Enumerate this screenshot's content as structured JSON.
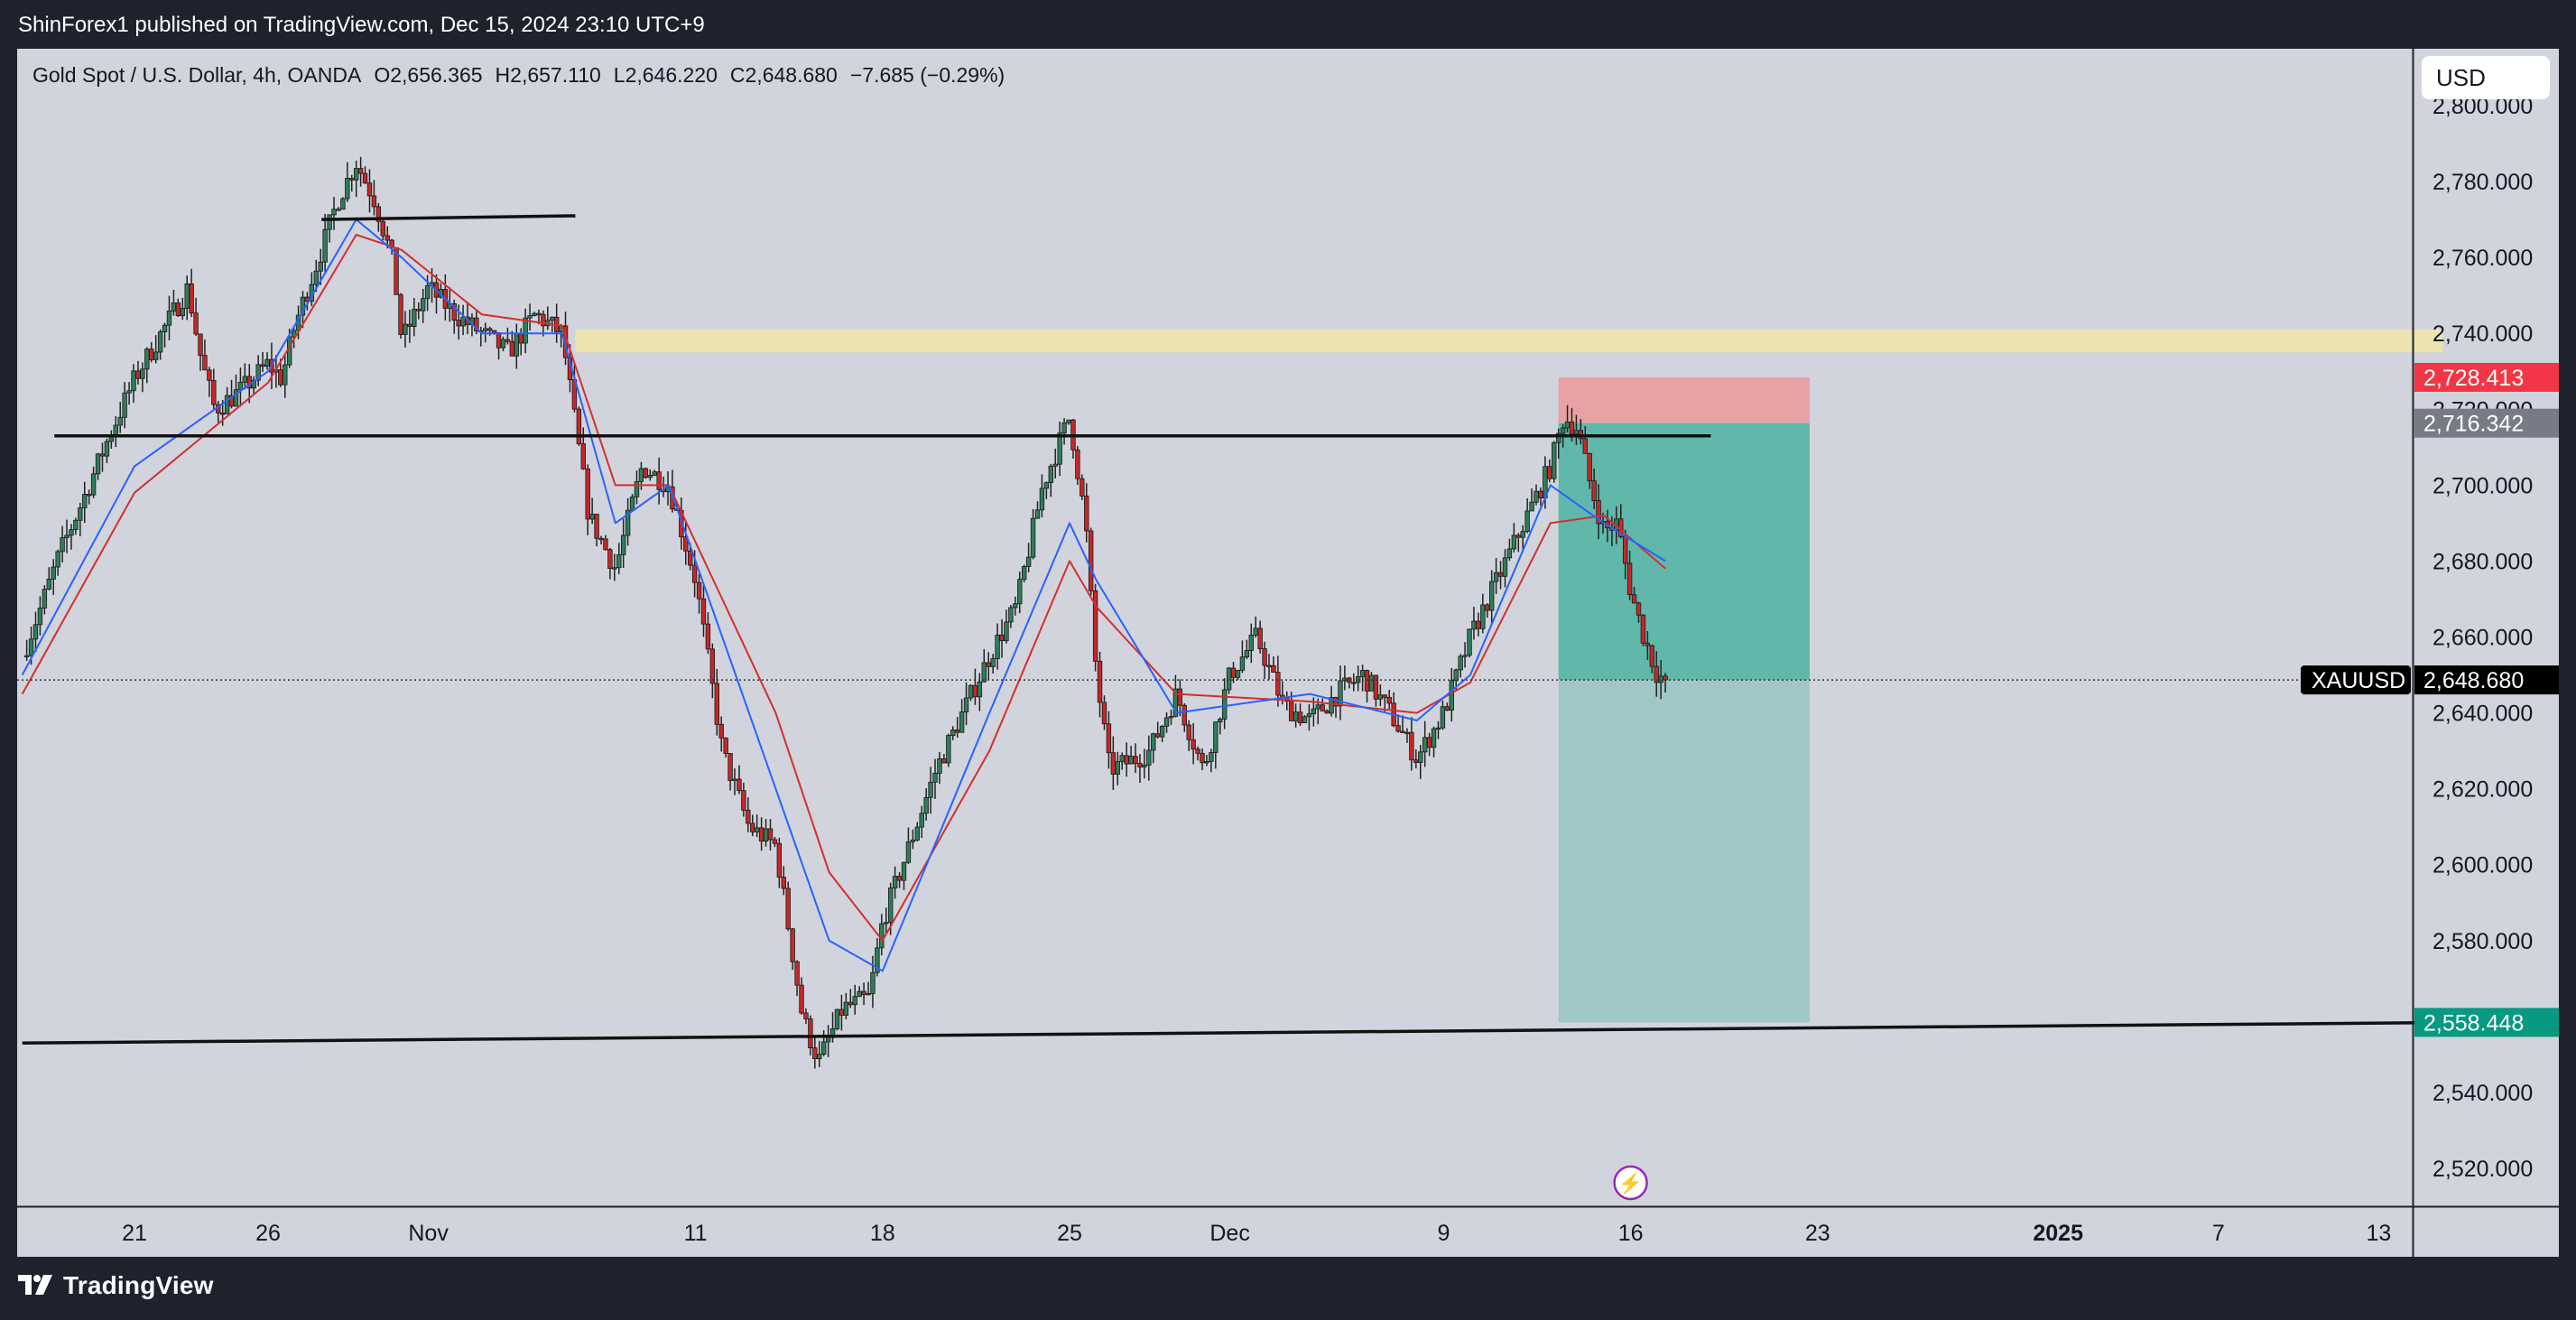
{
  "header": {
    "publisher": "ShinForex1 published on TradingView.com, Dec 15, 2024 23:10 UTC+9"
  },
  "legend": {
    "symbol": "Gold Spot / U.S. Dollar, 4h, OANDA",
    "open": "O2,656.365",
    "high": "H2,657.110",
    "low": "L2,646.220",
    "close": "C2,648.680",
    "change": "−7.685 (−0.29%)"
  },
  "currency_button": "USD",
  "footer": {
    "brand": "TradingView"
  },
  "colors": {
    "up_candle": "#2e7d5b",
    "down_candle": "#c62828",
    "ema_fast": "#2962ff",
    "ema_slow": "#d32f2f",
    "stop_zone": "#e8a2a6",
    "profit_zone": "#5fb8aa",
    "supply_zone": "#ebe3b0",
    "background": "#d1d4dc"
  },
  "chart_data": {
    "type": "candlestick",
    "symbol": "XAUUSD",
    "timeframe": "4h",
    "ylim": [
      2510,
      2815
    ],
    "y_ticks": [
      "2,800.000",
      "2,780.000",
      "2,760.000",
      "2,740.000",
      "2,720.000",
      "2,700.000",
      "2,680.000",
      "2,660.000",
      "2,640.000",
      "2,620.000",
      "2,600.000",
      "2,580.000",
      "2,560.000",
      "2,540.000",
      "2,520.000"
    ],
    "x_ticks": [
      {
        "label": "21",
        "day": 0
      },
      {
        "label": "26",
        "day": 5
      },
      {
        "label": "Nov",
        "day": 11
      },
      {
        "label": "11",
        "day": 21
      },
      {
        "label": "18",
        "day": 28
      },
      {
        "label": "25",
        "day": 35
      },
      {
        "label": "Dec",
        "day": 41
      },
      {
        "label": "9",
        "day": 49
      },
      {
        "label": "16",
        "day": 56
      },
      {
        "label": "23",
        "day": 63
      },
      {
        "label": "2025",
        "day": 72,
        "bold": true
      },
      {
        "label": "7",
        "day": 78
      },
      {
        "label": "13",
        "day": 84
      }
    ],
    "price_path": [
      [
        -4.2,
        2655
      ],
      [
        -3.5,
        2668
      ],
      [
        -2.8,
        2682
      ],
      [
        -2,
        2695
      ],
      [
        -1,
        2712
      ],
      [
        0,
        2728
      ],
      [
        1,
        2740
      ],
      [
        2,
        2752
      ],
      [
        2.5,
        2733
      ],
      [
        3,
        2720
      ],
      [
        4,
        2725
      ],
      [
        5,
        2732
      ],
      [
        5.5,
        2728
      ],
      [
        6,
        2742
      ],
      [
        7,
        2762
      ],
      [
        7.6,
        2775
      ],
      [
        8.3,
        2785
      ],
      [
        9,
        2775
      ],
      [
        9.7,
        2758
      ],
      [
        10,
        2738
      ],
      [
        11,
        2752
      ],
      [
        12,
        2745
      ],
      [
        13,
        2740
      ],
      [
        14,
        2735
      ],
      [
        15,
        2745
      ],
      [
        16,
        2740
      ],
      [
        17,
        2692
      ],
      [
        18,
        2678
      ],
      [
        19,
        2705
      ],
      [
        20,
        2700
      ],
      [
        21,
        2675
      ],
      [
        22,
        2630
      ],
      [
        23,
        2610
      ],
      [
        24,
        2605
      ],
      [
        25,
        2560
      ],
      [
        25.6,
        2548
      ],
      [
        26.5,
        2562
      ],
      [
        27.5,
        2565
      ],
      [
        28,
        2585
      ],
      [
        29,
        2605
      ],
      [
        30,
        2625
      ],
      [
        31,
        2640
      ],
      [
        32,
        2655
      ],
      [
        33,
        2668
      ],
      [
        34,
        2700
      ],
      [
        35,
        2718
      ],
      [
        35.6,
        2690
      ],
      [
        36,
        2650
      ],
      [
        36.5,
        2625
      ],
      [
        37.5,
        2628
      ],
      [
        38,
        2630
      ],
      [
        39,
        2645
      ],
      [
        40,
        2625
      ],
      [
        41,
        2650
      ],
      [
        42,
        2660
      ],
      [
        43,
        2642
      ],
      [
        44,
        2638
      ],
      [
        45,
        2645
      ],
      [
        46,
        2650
      ],
      [
        47,
        2640
      ],
      [
        48,
        2628
      ],
      [
        49,
        2640
      ],
      [
        50,
        2660
      ],
      [
        51,
        2675
      ],
      [
        52,
        2690
      ],
      [
        53,
        2705
      ],
      [
        53.5,
        2718
      ],
      [
        54,
        2715
      ],
      [
        54.5,
        2700
      ],
      [
        55,
        2688
      ],
      [
        55.5,
        2690
      ],
      [
        56,
        2672
      ],
      [
        56.5,
        2660
      ],
      [
        57,
        2650
      ],
      [
        57.3,
        2648.68
      ]
    ],
    "ema_fast": [
      [
        -4.2,
        2650
      ],
      [
        0,
        2705
      ],
      [
        5,
        2730
      ],
      [
        8.3,
        2770
      ],
      [
        10,
        2760
      ],
      [
        13,
        2740
      ],
      [
        16,
        2740
      ],
      [
        18,
        2690
      ],
      [
        20,
        2700
      ],
      [
        24,
        2620
      ],
      [
        26,
        2580
      ],
      [
        28,
        2572
      ],
      [
        32,
        2640
      ],
      [
        35,
        2690
      ],
      [
        36,
        2675
      ],
      [
        39,
        2640
      ],
      [
        44,
        2645
      ],
      [
        48,
        2638
      ],
      [
        50,
        2650
      ],
      [
        53,
        2700
      ],
      [
        55,
        2690
      ],
      [
        57.3,
        2680
      ]
    ],
    "ema_slow": [
      [
        -4.2,
        2645
      ],
      [
        0,
        2698
      ],
      [
        5,
        2727
      ],
      [
        8.3,
        2766
      ],
      [
        10,
        2762
      ],
      [
        13,
        2745
      ],
      [
        16,
        2742
      ],
      [
        18,
        2700
      ],
      [
        20,
        2700
      ],
      [
        24,
        2640
      ],
      [
        26,
        2598
      ],
      [
        28,
        2580
      ],
      [
        32,
        2630
      ],
      [
        35,
        2680
      ],
      [
        36,
        2668
      ],
      [
        39,
        2645
      ],
      [
        44,
        2643
      ],
      [
        48,
        2640
      ],
      [
        50,
        2648
      ],
      [
        53,
        2690
      ],
      [
        55,
        2692
      ],
      [
        57.3,
        2678
      ]
    ],
    "trendlines": [
      {
        "from": [
          -3,
          2713
        ],
        "to": [
          59,
          2713
        ]
      },
      {
        "from": [
          7,
          2770
        ],
        "to": [
          16.5,
          2771
        ]
      },
      {
        "from": [
          -4.2,
          2553
        ],
        "to": [
          86.4,
          2558.4
        ]
      }
    ],
    "supply_zone": {
      "from_day": 16.5,
      "to_day": 86.4,
      "low": 2735,
      "high": 2741
    },
    "position": {
      "type": "short",
      "start_day": 53.3,
      "end_day": 62.7,
      "stop": 2728.413,
      "entry": 2716.342,
      "target": 2558.448
    },
    "last_price": 2648.68,
    "price_labels": {
      "symbol": "XAUUSD",
      "last": "2,648.680",
      "stop": "2,728.413",
      "entry": "2,716.342",
      "target": "2,558.448"
    }
  }
}
